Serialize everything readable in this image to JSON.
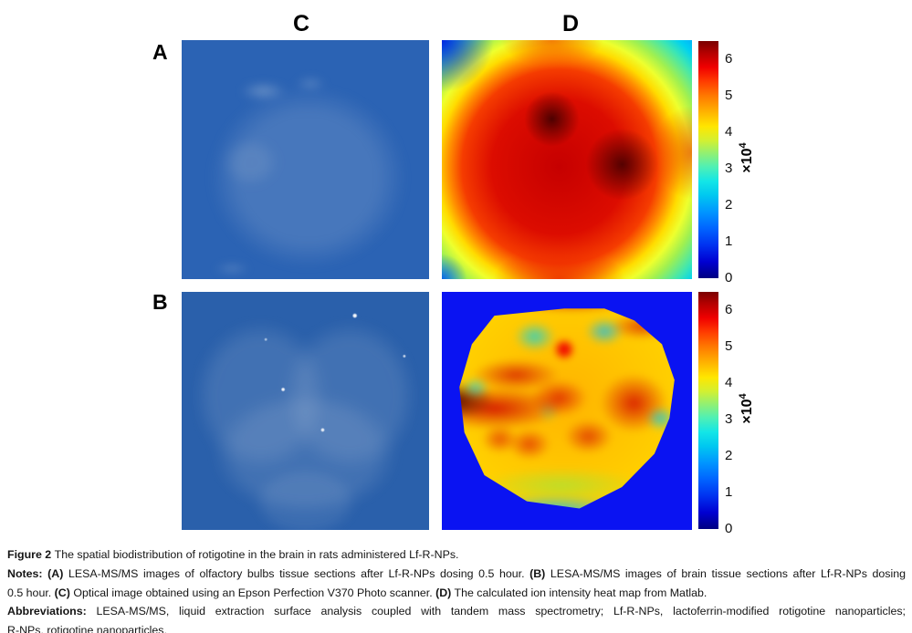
{
  "figure": {
    "labels": {
      "a": "A",
      "b": "B",
      "c": "C",
      "d": "D"
    }
  },
  "colorbar": {
    "ticks": [
      "6",
      "5",
      "4",
      "3",
      "2",
      "1",
      "0"
    ],
    "exponent_base": "×10",
    "exponent_power": "4"
  },
  "chart_data": [
    {
      "type": "heatmap",
      "title": "D (top): calculated ion intensity heat map of olfactory bulbs section",
      "colormap": "jet",
      "colorbar_ticks": [
        0,
        1,
        2,
        3,
        4,
        5,
        6
      ],
      "value_scale": "×10⁴",
      "value_range": [
        0,
        65000
      ]
    },
    {
      "type": "heatmap",
      "title": "D (bottom): calculated ion intensity heat map of brain section",
      "colormap": "jet",
      "colorbar_ticks": [
        0,
        1,
        2,
        3,
        4,
        5,
        6
      ],
      "value_scale": "×10⁴",
      "value_range": [
        0,
        65000
      ]
    }
  ],
  "palette": {
    "optical_scan_blue": "#2b63b4",
    "heatmap_background_blue": "#0a13f2",
    "heat_max_dark_red": "#7a0000",
    "page_background": "#ffffff"
  },
  "caption": {
    "line1": [
      {
        "text": "Figure 2 ",
        "bold": true
      },
      {
        "text": "The spatial biodistribution of rotigotine in the brain in rats administered Lf-R-NPs.",
        "bold": false
      }
    ],
    "line2": [
      {
        "text": "Notes: ",
        "bold": true
      },
      {
        "text": "(A)",
        "bold": true
      },
      {
        "text": " LESA-MS/MS images of olfactory bulbs tissue sections after Lf-R-NPs dosing 0.5 hour. ",
        "bold": false
      },
      {
        "text": "(B)",
        "bold": true
      },
      {
        "text": " LESA-MS/MS images of brain tissue sections after Lf-R-NPs dosing",
        "bold": false
      }
    ],
    "line3": [
      {
        "text": "0.5 hour. ",
        "bold": false
      },
      {
        "text": "(C)",
        "bold": true
      },
      {
        "text": " Optical image obtained using an Epson Perfection V370 Photo scanner. ",
        "bold": false
      },
      {
        "text": "(D)",
        "bold": true
      },
      {
        "text": " The calculated ion intensity heat map from Matlab.",
        "bold": false
      }
    ],
    "line4": [
      {
        "text": "Abbreviations: ",
        "bold": true
      },
      {
        "text": "LESA-MS/MS, liquid extraction surface analysis coupled with tandem mass spectrometry; Lf-R-NPs, lactoferrin-modified rotigotine nanoparticles;",
        "bold": false
      }
    ],
    "line5": [
      {
        "text": "R-NPs, rotigotine nanoparticles.",
        "bold": false
      }
    ]
  }
}
